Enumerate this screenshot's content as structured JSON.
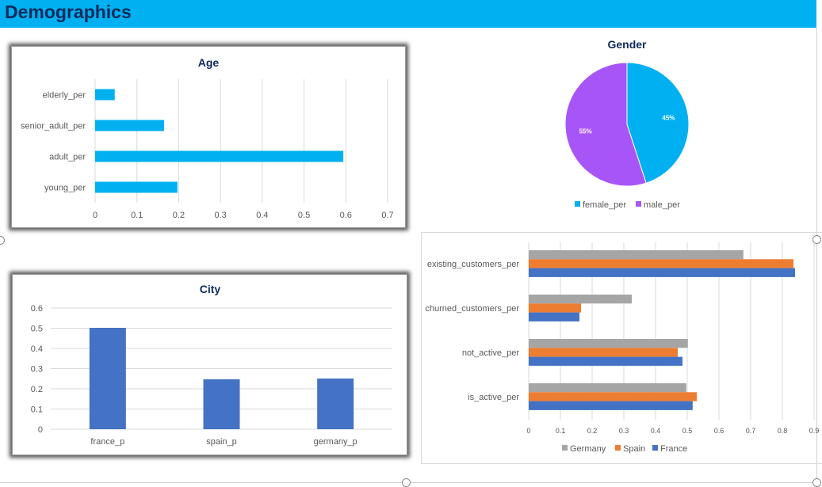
{
  "header": {
    "title": "Demographics"
  },
  "colors": {
    "header": "#00b0f0",
    "age_bar": "#00b0f0",
    "city_bar": "#4472c4",
    "female": "#00b0f0",
    "male": "#a855f7",
    "germany": "#a5a5a5",
    "spain": "#ed7d31",
    "france": "#4472c4"
  },
  "chart_data": [
    {
      "id": "age",
      "type": "bar",
      "orientation": "horizontal",
      "title": "Age",
      "categories": [
        "elderly_per",
        "senior_adult_per",
        "adult_per",
        "young_per"
      ],
      "values": [
        0.047,
        0.165,
        0.594,
        0.197
      ],
      "xlim": [
        0,
        0.7
      ],
      "ticks": [
        "0",
        "0.1",
        "0.2",
        "0.3",
        "0.4",
        "0.5",
        "0.6",
        "0.7"
      ],
      "grid": true
    },
    {
      "id": "gender",
      "type": "pie",
      "title": "Gender",
      "categories": [
        "female_per",
        "male_per"
      ],
      "values": [
        45,
        55
      ],
      "labels": [
        "45%",
        "55%"
      ],
      "legend": "bottom"
    },
    {
      "id": "city",
      "type": "bar",
      "title": "City",
      "categories": [
        "france_p",
        "spain_p",
        "germany_p"
      ],
      "values": [
        0.502,
        0.247,
        0.251
      ],
      "ylim": [
        0,
        0.6
      ],
      "ticks": [
        "0",
        "0.1",
        "0.2",
        "0.3",
        "0.4",
        "0.5",
        "0.6"
      ],
      "grid": true
    },
    {
      "id": "country",
      "type": "bar",
      "orientation": "horizontal",
      "categories": [
        "existing_customers_per",
        "churned_customers_per",
        "not_active_per",
        "is_active_per"
      ],
      "series": [
        {
          "name": "Germany",
          "values": [
            0.677,
            0.325,
            0.502,
            0.497
          ]
        },
        {
          "name": "Spain",
          "values": [
            0.835,
            0.165,
            0.47,
            0.53
          ]
        },
        {
          "name": "France",
          "values": [
            0.84,
            0.16,
            0.485,
            0.517
          ]
        }
      ],
      "xlim": [
        0,
        0.9
      ],
      "ticks": [
        "0",
        "0.1",
        "0.2",
        "0.3",
        "0.4",
        "0.5",
        "0.6",
        "0.7",
        "0.8",
        "0.9"
      ],
      "grid": true,
      "legend": "bottom"
    }
  ]
}
